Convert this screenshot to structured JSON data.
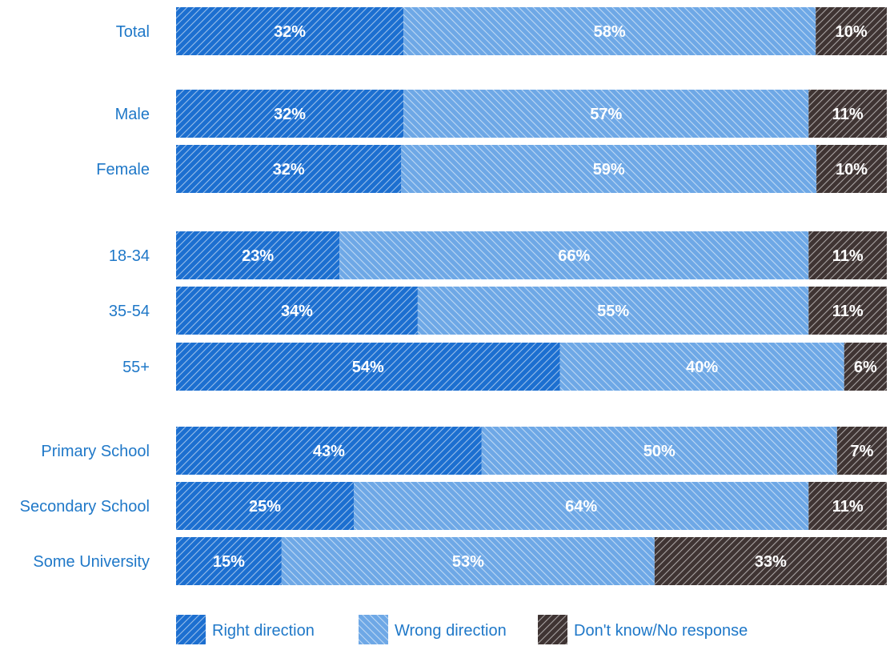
{
  "chart_data": {
    "type": "bar",
    "orientation": "horizontal",
    "stacked": true,
    "categories": [
      "Total",
      "Male",
      "Female",
      "18-34",
      "35-54",
      "55+",
      "Primary School",
      "Secondary School",
      "Some University"
    ],
    "series": [
      {
        "name": "Right direction",
        "values": [
          32,
          32,
          32,
          23,
          34,
          54,
          43,
          25,
          15
        ],
        "color": "#1c6fd0"
      },
      {
        "name": "Wrong direction",
        "values": [
          58,
          57,
          59,
          66,
          55,
          40,
          50,
          64,
          53
        ],
        "color": "#6ea8e6"
      },
      {
        "name": "Don't know/No response",
        "values": [
          10,
          11,
          10,
          11,
          11,
          6,
          7,
          11,
          33
        ],
        "color": "#3f3433"
      }
    ],
    "value_labels": [
      [
        "32%",
        "32%",
        "32%",
        "23%",
        "34%",
        "54%",
        "43%",
        "25%",
        "15%"
      ],
      [
        "58%",
        "57%",
        "59%",
        "66%",
        "55%",
        "40%",
        "50%",
        "64%",
        "53%"
      ],
      [
        "10%",
        "11%",
        "10%",
        "11%",
        "11%",
        "6%",
        "7%",
        "11%",
        "33%"
      ]
    ],
    "groups": [
      [
        "Total"
      ],
      [
        "Male",
        "Female"
      ],
      [
        "18-34",
        "35-54",
        "55+"
      ],
      [
        "Primary School",
        "Secondary School",
        "Some University"
      ]
    ],
    "xlim": [
      0,
      100
    ],
    "grid": false,
    "legend_position": "bottom",
    "title": "",
    "xlabel": "",
    "ylabel": ""
  }
}
